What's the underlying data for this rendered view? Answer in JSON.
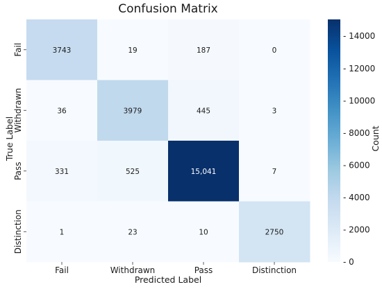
{
  "chart_data": {
    "type": "heatmap",
    "title": "Confusion Matrix",
    "xlabel": "Predicted Label",
    "ylabel": "True Label",
    "x_categories": [
      "Fail",
      "Withdrawn",
      "Pass",
      "Distinction"
    ],
    "y_categories": [
      "Fail",
      "Withdrawn",
      "Pass",
      "Distinction"
    ],
    "values": [
      [
        3743,
        19,
        187,
        0
      ],
      [
        36,
        3979,
        445,
        3
      ],
      [
        331,
        525,
        15041,
        7
      ],
      [
        1,
        23,
        10,
        2750
      ]
    ],
    "cell_labels": [
      [
        "3743",
        "19",
        "187",
        "0"
      ],
      [
        "36",
        "3979",
        "445",
        "3"
      ],
      [
        "331",
        "525",
        "15,041",
        "7"
      ],
      [
        "1",
        "23",
        "10",
        "2750"
      ]
    ],
    "colorbar": {
      "label": "Count",
      "range": [
        0,
        15041
      ],
      "ticks": [
        0,
        2000,
        4000,
        6000,
        8000,
        10000,
        12000,
        14000
      ],
      "tick_labels": [
        "- 0",
        "- 2000",
        "- 4000",
        "- 6000",
        "- 8000",
        "- 10000",
        "- 12000",
        "- 14000"
      ],
      "colormap": "Blues",
      "colors": [
        "#f7fbff",
        "#deebf7",
        "#c6dbef",
        "#9ecae1",
        "#6baed6",
        "#4292c6",
        "#2171b5",
        "#08519c",
        "#08306b"
      ]
    }
  }
}
